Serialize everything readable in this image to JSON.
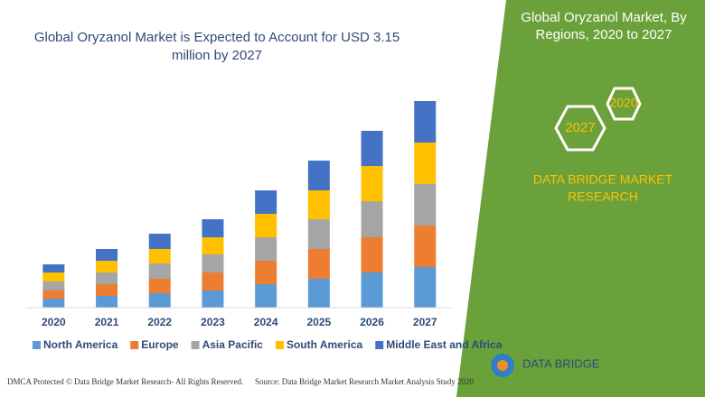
{
  "chart_data": {
    "type": "stacked-bar",
    "title": "Global Oryzanol Market is Expected to Account for USD 3.15 million by 2027",
    "categories": [
      "2020",
      "2021",
      "2022",
      "2023",
      "2024",
      "2025",
      "2026",
      "2027"
    ],
    "series": [
      {
        "name": "North America",
        "color": "#5b9bd5",
        "values": [
          10,
          13,
          16,
          19,
          26,
          32,
          39,
          45
        ]
      },
      {
        "name": "Europe",
        "color": "#ed7d31",
        "values": [
          9,
          13,
          16,
          20,
          26,
          33,
          39,
          46
        ]
      },
      {
        "name": "Asia Pacific",
        "color": "#a5a5a5",
        "values": [
          10,
          13,
          17,
          20,
          26,
          33,
          40,
          46
        ]
      },
      {
        "name": "South America",
        "color": "#ffc000",
        "values": [
          10,
          13,
          16,
          19,
          26,
          32,
          39,
          46
        ]
      },
      {
        "name": "Middle East and Africa",
        "color": "#4472c4",
        "values": [
          9,
          13,
          17,
          20,
          26,
          33,
          39,
          46
        ]
      }
    ]
  },
  "panel": {
    "title_line1": "Global Oryzanol Market, By",
    "title_line2": "Regions, 2020 to 2027",
    "hex_end": "2027",
    "hex_start": "2020",
    "brand_line1": "DATA BRIDGE MARKET",
    "brand_line2": "RESEARCH",
    "logo": "DATA BRIDGE"
  },
  "footer": {
    "left": "DMCA Protected © Data Bridge Market Research- All Rights Reserved.",
    "right": "Source: Data Bridge Market Research Market Analysis Study 2020"
  }
}
